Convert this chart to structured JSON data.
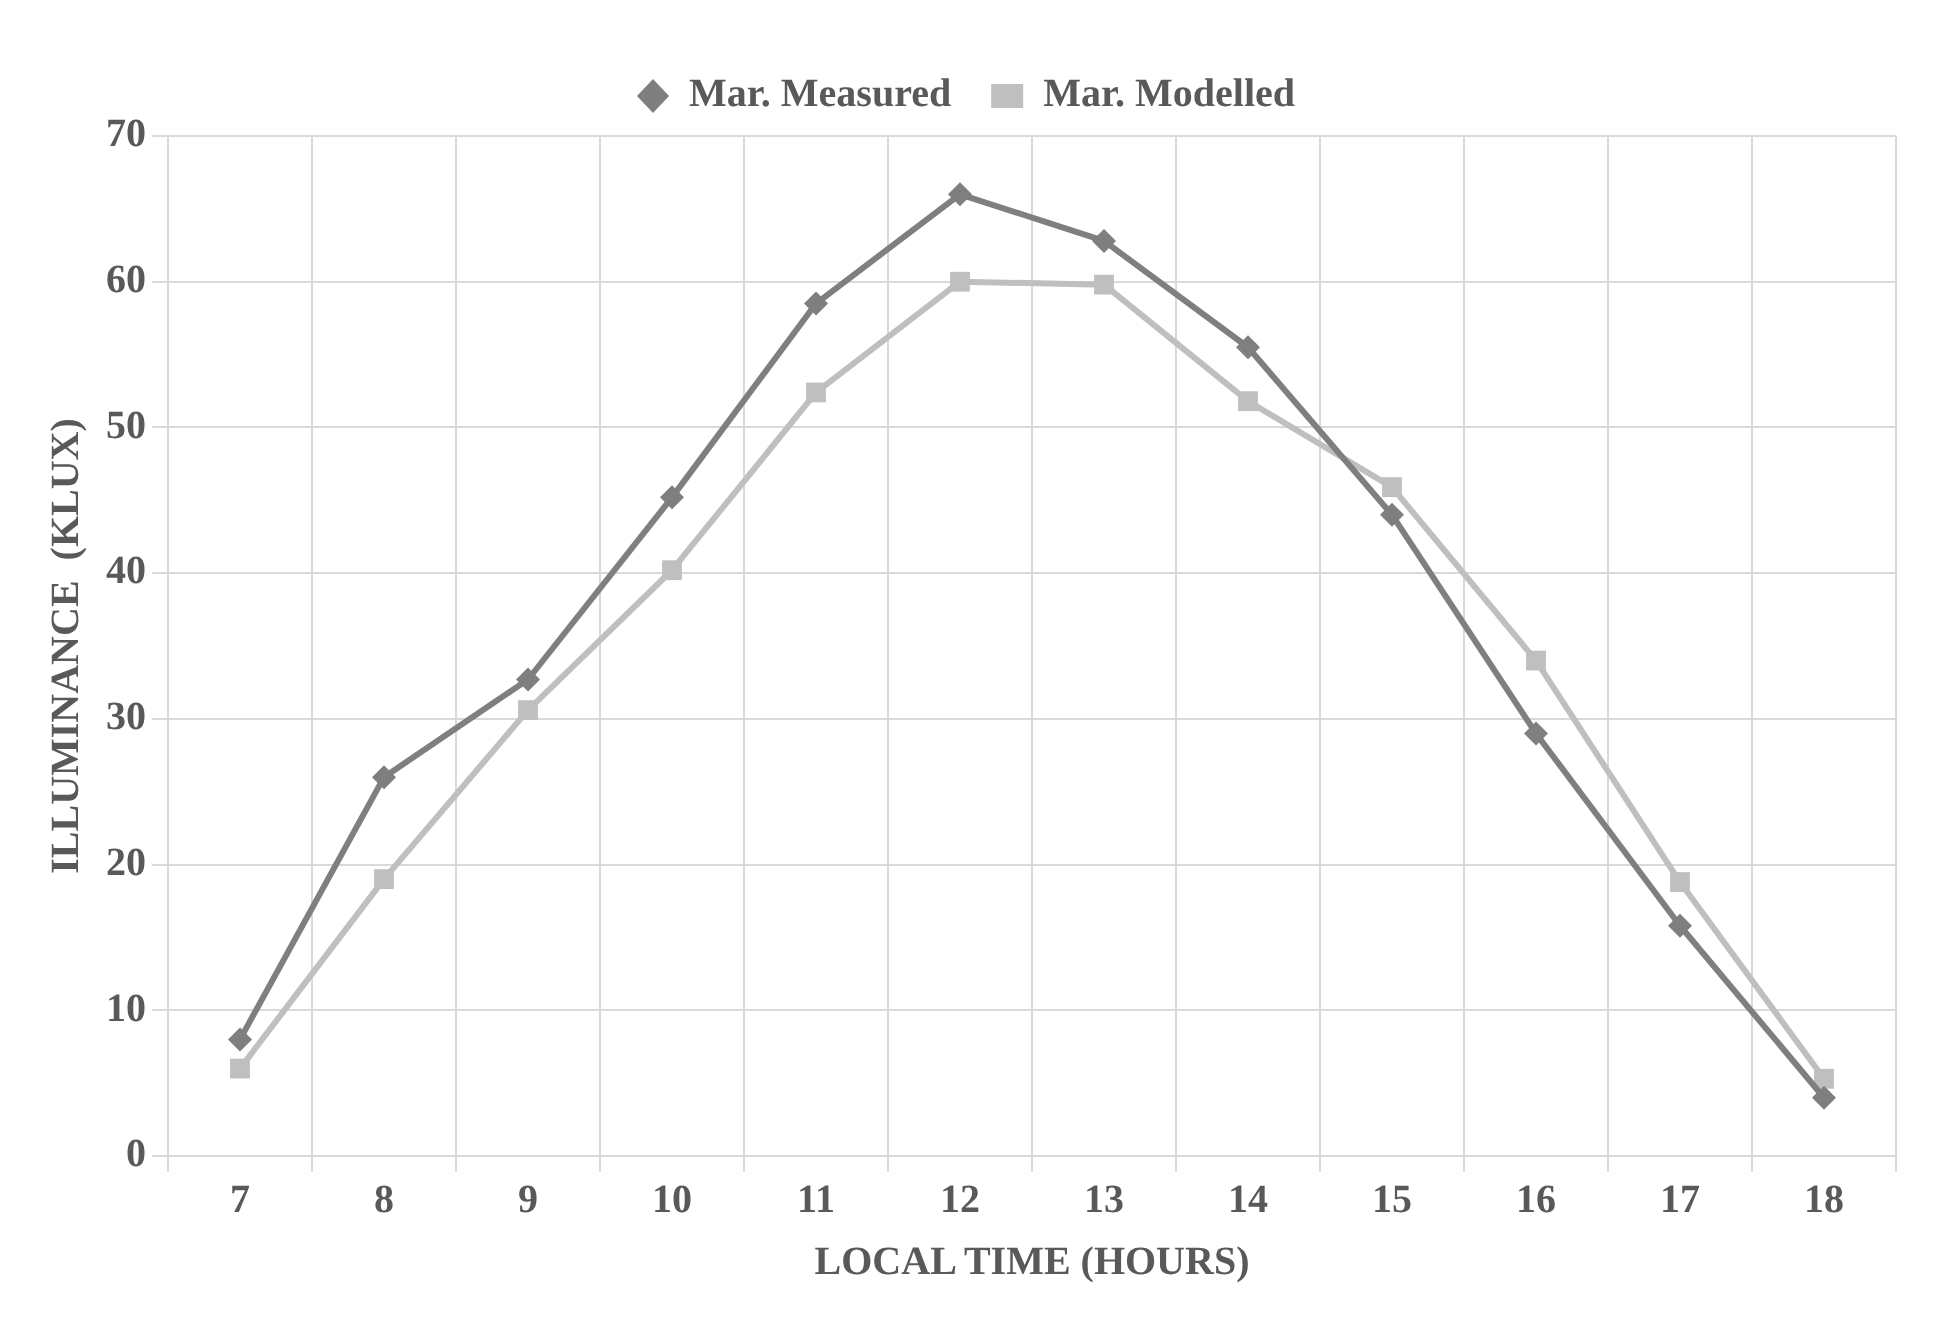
{
  "chart_data": {
    "type": "line",
    "xlabel": "LOCAL TIME (HOURS)",
    "ylabel": "ILLUMINANCE  (KLUX)",
    "categories": [
      "7",
      "8",
      "9",
      "10",
      "11",
      "12",
      "13",
      "14",
      "15",
      "16",
      "17",
      "18"
    ],
    "series": [
      {
        "name": "Mar. Measured",
        "color": "#7f7f7f",
        "marker": "diamond",
        "values": [
          8,
          26,
          32.7,
          45.2,
          58.5,
          66,
          62.8,
          55.5,
          44,
          29,
          15.8,
          4
        ]
      },
      {
        "name": "Mar. Modelled",
        "color": "#bfbfbf",
        "marker": "square",
        "values": [
          6,
          19,
          30.6,
          40.2,
          52.4,
          60,
          59.8,
          51.8,
          45.9,
          34,
          18.8,
          5.3
        ]
      }
    ],
    "ylim": [
      0,
      70
    ],
    "yticks": [
      0,
      10,
      20,
      30,
      40,
      50,
      60,
      70
    ],
    "grid": true,
    "legend": "top",
    "line_style": "solid"
  }
}
